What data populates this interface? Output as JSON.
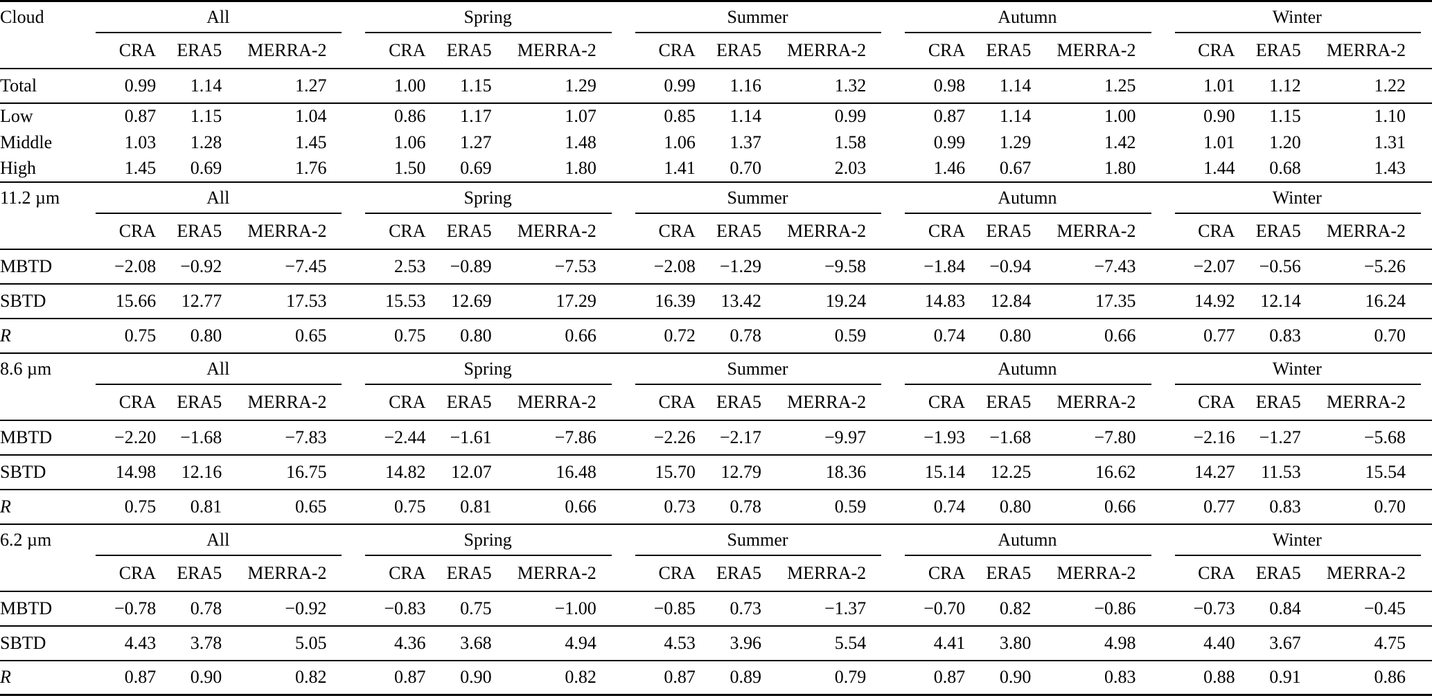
{
  "colors": {
    "text": "#000000",
    "background": "#ffffff",
    "rule": "#000000"
  },
  "groups": [
    "All",
    "Spring",
    "Summer",
    "Autumn",
    "Winter"
  ],
  "subcolumns": [
    "CRA",
    "ERA5",
    "MERRA-2"
  ],
  "sections": [
    {
      "label": "Cloud",
      "rows": [
        {
          "label": "Total",
          "values": [
            "0.99",
            "1.14",
            "1.27",
            "1.00",
            "1.15",
            "1.29",
            "0.99",
            "1.16",
            "1.32",
            "0.98",
            "1.14",
            "1.25",
            "1.01",
            "1.12",
            "1.22"
          ]
        },
        {
          "label": "Low",
          "values": [
            "0.87",
            "1.15",
            "1.04",
            "0.86",
            "1.17",
            "1.07",
            "0.85",
            "1.14",
            "0.99",
            "0.87",
            "1.14",
            "1.00",
            "0.90",
            "1.15",
            "1.10"
          ]
        },
        {
          "label": "Middle",
          "values": [
            "1.03",
            "1.28",
            "1.45",
            "1.06",
            "1.27",
            "1.48",
            "1.06",
            "1.37",
            "1.58",
            "0.99",
            "1.29",
            "1.42",
            "1.01",
            "1.20",
            "1.31"
          ]
        },
        {
          "label": "High",
          "values": [
            "1.45",
            "0.69",
            "1.76",
            "1.50",
            "0.69",
            "1.80",
            "1.41",
            "0.70",
            "2.03",
            "1.46",
            "0.67",
            "1.80",
            "1.44",
            "0.68",
            "1.43"
          ]
        }
      ]
    },
    {
      "label": "11.2 µm",
      "rows": [
        {
          "label": "MBTD",
          "values": [
            "−2.08",
            "−0.92",
            "−7.45",
            "2.53",
            "−0.89",
            "−7.53",
            "−2.08",
            "−1.29",
            "−9.58",
            "−1.84",
            "−0.94",
            "−7.43",
            "−2.07",
            "−0.56",
            "−5.26"
          ]
        },
        {
          "label": "SBTD",
          "values": [
            "15.66",
            "12.77",
            "17.53",
            "15.53",
            "12.69",
            "17.29",
            "16.39",
            "13.42",
            "19.24",
            "14.83",
            "12.84",
            "17.35",
            "14.92",
            "12.14",
            "16.24"
          ]
        },
        {
          "label": "R",
          "values": [
            "0.75",
            "0.80",
            "0.65",
            "0.75",
            "0.80",
            "0.66",
            "0.72",
            "0.78",
            "0.59",
            "0.74",
            "0.80",
            "0.66",
            "0.77",
            "0.83",
            "0.70"
          ]
        }
      ]
    },
    {
      "label": "8.6 µm",
      "rows": [
        {
          "label": "MBTD",
          "values": [
            "−2.20",
            "−1.68",
            "−7.83",
            "−2.44",
            "−1.61",
            "−7.86",
            "−2.26",
            "−2.17",
            "−9.97",
            "−1.93",
            "−1.68",
            "−7.80",
            "−2.16",
            "−1.27",
            "−5.68"
          ]
        },
        {
          "label": "SBTD",
          "values": [
            "14.98",
            "12.16",
            "16.75",
            "14.82",
            "12.07",
            "16.48",
            "15.70",
            "12.79",
            "18.36",
            "15.14",
            "12.25",
            "16.62",
            "14.27",
            "11.53",
            "15.54"
          ]
        },
        {
          "label": "R",
          "values": [
            "0.75",
            "0.81",
            "0.65",
            "0.75",
            "0.81",
            "0.66",
            "0.73",
            "0.78",
            "0.59",
            "0.74",
            "0.80",
            "0.66",
            "0.77",
            "0.83",
            "0.70"
          ]
        }
      ]
    },
    {
      "label": "6.2 µm",
      "rows": [
        {
          "label": "MBTD",
          "values": [
            "−0.78",
            "0.78",
            "−0.92",
            "−0.83",
            "0.75",
            "−1.00",
            "−0.85",
            "0.73",
            "−1.37",
            "−0.70",
            "0.82",
            "−0.86",
            "−0.73",
            "0.84",
            "−0.45"
          ]
        },
        {
          "label": "SBTD",
          "values": [
            "4.43",
            "3.78",
            "5.05",
            "4.36",
            "3.68",
            "4.94",
            "4.53",
            "3.96",
            "5.54",
            "4.41",
            "3.80",
            "4.98",
            "4.40",
            "3.67",
            "4.75"
          ]
        },
        {
          "label": "R",
          "values": [
            "0.87",
            "0.90",
            "0.82",
            "0.87",
            "0.90",
            "0.82",
            "0.87",
            "0.89",
            "0.79",
            "0.87",
            "0.90",
            "0.83",
            "0.88",
            "0.91",
            "0.86"
          ]
        }
      ]
    }
  ]
}
